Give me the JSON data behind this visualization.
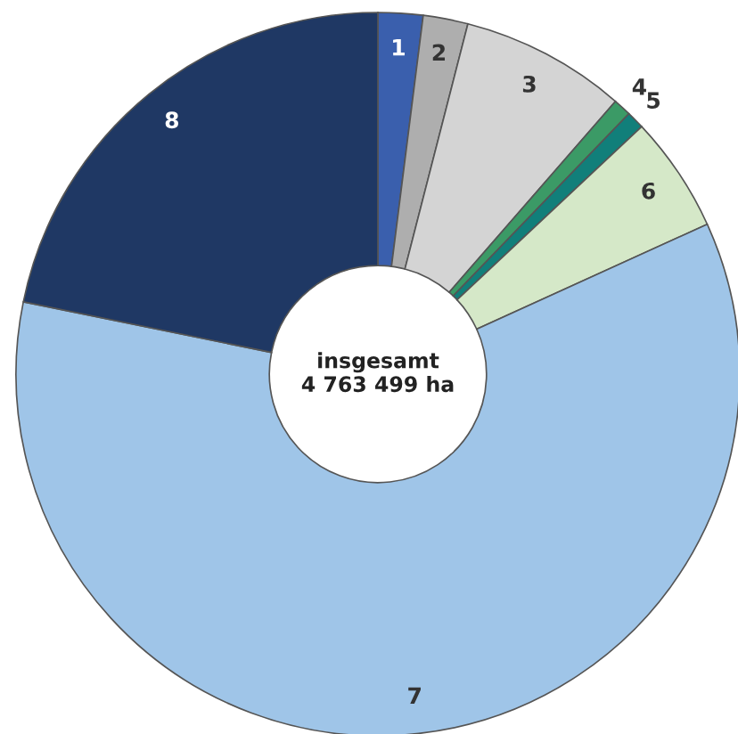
{
  "chart_data": {
    "type": "donut",
    "categories": [
      "1",
      "2",
      "3",
      "4",
      "5",
      "6",
      "7",
      "8"
    ],
    "values": [
      2.0,
      2.0,
      7.4,
      0.8,
      0.8,
      5.2,
      60.0,
      21.8
    ],
    "colors": [
      "#3a5fad",
      "#aeaeae",
      "#d4d4d4",
      "#3b9a66",
      "#117f7a",
      "#d5e8c8",
      "#9fc5e8",
      "#1f3864"
    ],
    "annotations": [
      "insgesamt\n4 763 499 ha"
    ],
    "legend": false
  }
}
